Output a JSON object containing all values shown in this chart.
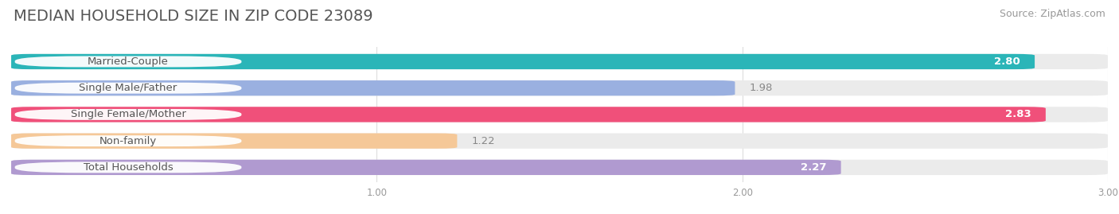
{
  "title": "MEDIAN HOUSEHOLD SIZE IN ZIP CODE 23089",
  "source": "Source: ZipAtlas.com",
  "categories": [
    "Married-Couple",
    "Single Male/Father",
    "Single Female/Mother",
    "Non-family",
    "Total Households"
  ],
  "values": [
    2.8,
    1.98,
    2.83,
    1.22,
    2.27
  ],
  "bar_colors": [
    "#2bb5b8",
    "#9ab0e0",
    "#f0507a",
    "#f5c898",
    "#b09ad0"
  ],
  "bar_bg_colors": [
    "#ebebeb",
    "#ebebeb",
    "#ebebeb",
    "#ebebeb",
    "#ebebeb"
  ],
  "label_bg_color": "#ffffff",
  "xlim": [
    0,
    3.0
  ],
  "xticks": [
    1.0,
    2.0,
    3.0
  ],
  "title_fontsize": 14,
  "source_fontsize": 9,
  "label_fontsize": 9.5,
  "value_fontsize": 9.5,
  "background_color": "#ffffff",
  "label_text_color": "#555555",
  "value_text_color_inside": "#ffffff",
  "value_text_color_outside": "#888888"
}
